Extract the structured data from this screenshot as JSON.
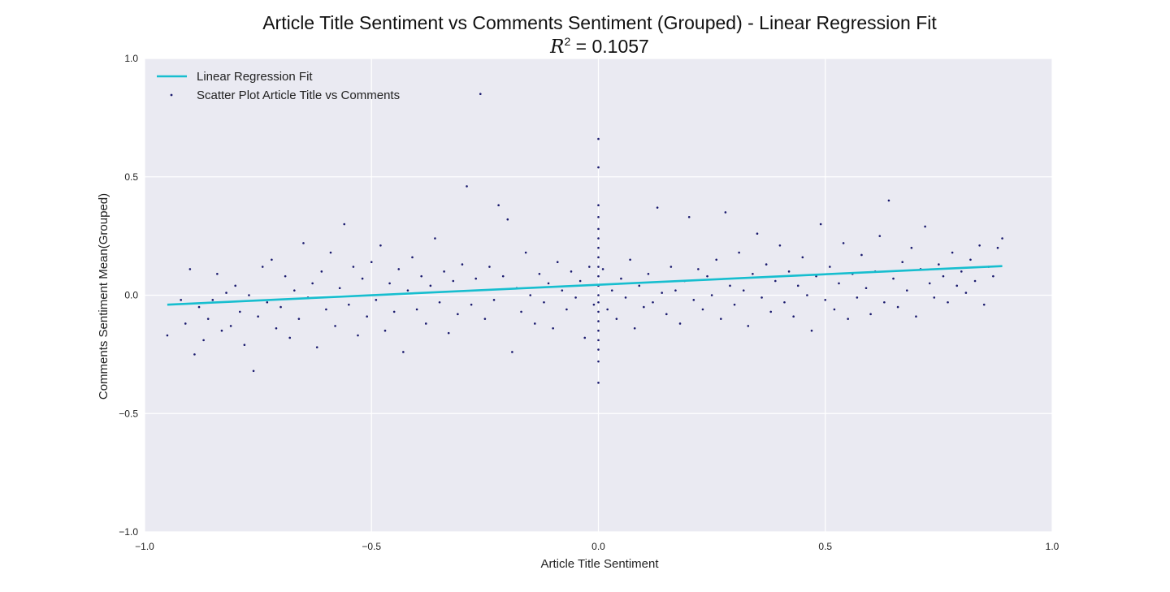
{
  "chart_data": {
    "type": "scatter",
    "title": "Article Title Sentiment vs Comments Sentiment (Grouped) - Linear Regression Fit",
    "subtitle": {
      "r2_symbol": "R",
      "r2_exponent": "2",
      "r2_text": " = 0.1057"
    },
    "xlabel": "Article Title Sentiment",
    "ylabel": "Comments Sentiment Mean(Grouped)",
    "xlim": [
      -1.0,
      1.0
    ],
    "ylim": [
      -1.0,
      1.0
    ],
    "x_ticks": [
      -1.0,
      -0.5,
      0.0,
      0.5,
      1.0
    ],
    "x_tick_labels": [
      "−1.0",
      "−0.5",
      "0.0",
      "0.5",
      "1.0"
    ],
    "y_ticks": [
      -1.0,
      -0.5,
      0.0,
      0.5,
      1.0
    ],
    "y_tick_labels": [
      "−1.0",
      "−0.5",
      "0.0",
      "0.5",
      "1.0"
    ],
    "grid": true,
    "legend_position": "top-left",
    "colors": {
      "background": "#EAEAF2",
      "grid": "#FFFFFF",
      "points": "#1a1a6e",
      "fit_line": "#17BECF"
    },
    "series": [
      {
        "name": "Linear Regression Fit",
        "type": "line",
        "x": [
          -0.95,
          0.89
        ],
        "y": [
          -0.04,
          0.123
        ]
      },
      {
        "name": "Scatter Plot Article Title vs Comments",
        "type": "scatter",
        "points": [
          [
            -0.95,
            -0.17
          ],
          [
            -0.92,
            -0.02
          ],
          [
            -0.91,
            -0.12
          ],
          [
            -0.9,
            0.11
          ],
          [
            -0.89,
            -0.25
          ],
          [
            -0.88,
            -0.05
          ],
          [
            -0.87,
            -0.19
          ],
          [
            -0.86,
            -0.1
          ],
          [
            -0.85,
            -0.02
          ],
          [
            -0.84,
            0.09
          ],
          [
            -0.83,
            -0.15
          ],
          [
            -0.82,
            0.01
          ],
          [
            -0.81,
            -0.13
          ],
          [
            -0.8,
            0.04
          ],
          [
            -0.79,
            -0.07
          ],
          [
            -0.78,
            -0.21
          ],
          [
            -0.77,
            0.0
          ],
          [
            -0.76,
            -0.32
          ],
          [
            -0.75,
            -0.09
          ],
          [
            -0.74,
            0.12
          ],
          [
            -0.73,
            -0.03
          ],
          [
            -0.72,
            0.15
          ],
          [
            -0.71,
            -0.14
          ],
          [
            -0.7,
            -0.05
          ],
          [
            -0.69,
            0.08
          ],
          [
            -0.68,
            -0.18
          ],
          [
            -0.67,
            0.02
          ],
          [
            -0.66,
            -0.1
          ],
          [
            -0.65,
            0.22
          ],
          [
            -0.64,
            -0.01
          ],
          [
            -0.63,
            0.05
          ],
          [
            -0.62,
            -0.22
          ],
          [
            -0.61,
            0.1
          ],
          [
            -0.6,
            -0.06
          ],
          [
            -0.59,
            0.18
          ],
          [
            -0.58,
            -0.13
          ],
          [
            -0.57,
            0.03
          ],
          [
            -0.56,
            0.3
          ],
          [
            -0.55,
            -0.04
          ],
          [
            -0.54,
            0.12
          ],
          [
            -0.53,
            -0.17
          ],
          [
            -0.52,
            0.07
          ],
          [
            -0.51,
            -0.09
          ],
          [
            -0.5,
            0.14
          ],
          [
            -0.49,
            -0.02
          ],
          [
            -0.48,
            0.21
          ],
          [
            -0.47,
            -0.15
          ],
          [
            -0.46,
            0.05
          ],
          [
            -0.45,
            -0.07
          ],
          [
            -0.44,
            0.11
          ],
          [
            -0.43,
            -0.24
          ],
          [
            -0.42,
            0.02
          ],
          [
            -0.41,
            0.16
          ],
          [
            -0.4,
            -0.06
          ],
          [
            -0.39,
            0.08
          ],
          [
            -0.38,
            -0.12
          ],
          [
            -0.37,
            0.04
          ],
          [
            -0.36,
            0.24
          ],
          [
            -0.35,
            -0.03
          ],
          [
            -0.34,
            0.1
          ],
          [
            -0.33,
            -0.16
          ],
          [
            -0.32,
            0.06
          ],
          [
            -0.31,
            -0.08
          ],
          [
            -0.3,
            0.13
          ],
          [
            -0.29,
            0.46
          ],
          [
            -0.28,
            -0.04
          ],
          [
            -0.27,
            0.07
          ],
          [
            -0.26,
            0.85
          ],
          [
            -0.25,
            -0.1
          ],
          [
            -0.24,
            0.12
          ],
          [
            -0.23,
            -0.02
          ],
          [
            -0.22,
            0.38
          ],
          [
            -0.21,
            0.08
          ],
          [
            -0.2,
            0.32
          ],
          [
            -0.19,
            -0.24
          ],
          [
            -0.18,
            0.03
          ],
          [
            -0.17,
            -0.07
          ],
          [
            -0.16,
            0.18
          ],
          [
            -0.15,
            0.0
          ],
          [
            -0.14,
            -0.12
          ],
          [
            -0.13,
            0.09
          ],
          [
            -0.12,
            -0.03
          ],
          [
            -0.11,
            0.05
          ],
          [
            -0.1,
            -0.14
          ],
          [
            -0.09,
            0.14
          ],
          [
            -0.08,
            0.02
          ],
          [
            -0.07,
            -0.06
          ],
          [
            -0.06,
            0.1
          ],
          [
            -0.05,
            -0.01
          ],
          [
            -0.04,
            0.06
          ],
          [
            -0.03,
            -0.18
          ],
          [
            -0.02,
            0.12
          ],
          [
            -0.01,
            -0.04
          ],
          [
            0.0,
            0.66
          ],
          [
            0.0,
            0.54
          ],
          [
            0.0,
            0.38
          ],
          [
            0.0,
            0.33
          ],
          [
            0.0,
            0.28
          ],
          [
            0.0,
            0.24
          ],
          [
            0.0,
            0.2
          ],
          [
            0.0,
            0.16
          ],
          [
            0.0,
            0.12
          ],
          [
            0.0,
            0.08
          ],
          [
            0.0,
            0.04
          ],
          [
            0.0,
            0.0
          ],
          [
            0.0,
            -0.03
          ],
          [
            0.0,
            -0.07
          ],
          [
            0.0,
            -0.11
          ],
          [
            0.0,
            -0.15
          ],
          [
            0.0,
            -0.19
          ],
          [
            0.0,
            -0.23
          ],
          [
            0.0,
            -0.28
          ],
          [
            0.0,
            -0.37
          ],
          [
            0.01,
            0.11
          ],
          [
            0.02,
            -0.06
          ],
          [
            0.03,
            0.02
          ],
          [
            0.04,
            -0.1
          ],
          [
            0.05,
            0.07
          ],
          [
            0.06,
            -0.01
          ],
          [
            0.07,
            0.15
          ],
          [
            0.08,
            -0.14
          ],
          [
            0.09,
            0.04
          ],
          [
            0.1,
            -0.05
          ],
          [
            0.11,
            0.09
          ],
          [
            0.12,
            -0.03
          ],
          [
            0.13,
            0.37
          ],
          [
            0.14,
            0.01
          ],
          [
            0.15,
            -0.08
          ],
          [
            0.16,
            0.12
          ],
          [
            0.17,
            0.02
          ],
          [
            0.18,
            -0.12
          ],
          [
            0.19,
            0.06
          ],
          [
            0.2,
            0.33
          ],
          [
            0.21,
            -0.02
          ],
          [
            0.22,
            0.11
          ],
          [
            0.23,
            -0.06
          ],
          [
            0.24,
            0.08
          ],
          [
            0.25,
            0.0
          ],
          [
            0.26,
            0.15
          ],
          [
            0.27,
            -0.1
          ],
          [
            0.28,
            0.35
          ],
          [
            0.29,
            0.04
          ],
          [
            0.3,
            -0.04
          ],
          [
            0.31,
            0.18
          ],
          [
            0.32,
            0.02
          ],
          [
            0.33,
            -0.13
          ],
          [
            0.34,
            0.09
          ],
          [
            0.35,
            0.26
          ],
          [
            0.36,
            -0.01
          ],
          [
            0.37,
            0.13
          ],
          [
            0.38,
            -0.07
          ],
          [
            0.39,
            0.06
          ],
          [
            0.4,
            0.21
          ],
          [
            0.41,
            -0.03
          ],
          [
            0.42,
            0.1
          ],
          [
            0.43,
            -0.09
          ],
          [
            0.44,
            0.04
          ],
          [
            0.45,
            0.16
          ],
          [
            0.46,
            0.0
          ],
          [
            0.47,
            -0.15
          ],
          [
            0.48,
            0.08
          ],
          [
            0.49,
            0.3
          ],
          [
            0.5,
            -0.02
          ],
          [
            0.51,
            0.12
          ],
          [
            0.52,
            -0.06
          ],
          [
            0.53,
            0.05
          ],
          [
            0.54,
            0.22
          ],
          [
            0.55,
            -0.1
          ],
          [
            0.56,
            0.09
          ],
          [
            0.57,
            -0.01
          ],
          [
            0.58,
            0.17
          ],
          [
            0.59,
            0.03
          ],
          [
            0.6,
            -0.08
          ],
          [
            0.61,
            0.1
          ],
          [
            0.62,
            0.25
          ],
          [
            0.63,
            -0.03
          ],
          [
            0.64,
            0.4
          ],
          [
            0.65,
            0.07
          ],
          [
            0.66,
            -0.05
          ],
          [
            0.67,
            0.14
          ],
          [
            0.68,
            0.02
          ],
          [
            0.69,
            0.2
          ],
          [
            0.7,
            -0.09
          ],
          [
            0.71,
            0.11
          ],
          [
            0.72,
            0.29
          ],
          [
            0.73,
            0.05
          ],
          [
            0.74,
            -0.01
          ],
          [
            0.75,
            0.13
          ],
          [
            0.76,
            0.08
          ],
          [
            0.77,
            -0.03
          ],
          [
            0.78,
            0.18
          ],
          [
            0.79,
            0.04
          ],
          [
            0.8,
            0.1
          ],
          [
            0.81,
            0.01
          ],
          [
            0.82,
            0.15
          ],
          [
            0.83,
            0.06
          ],
          [
            0.84,
            0.21
          ],
          [
            0.85,
            -0.04
          ],
          [
            0.86,
            0.12
          ],
          [
            0.87,
            0.08
          ],
          [
            0.88,
            0.2
          ],
          [
            0.89,
            0.24
          ]
        ]
      }
    ]
  }
}
